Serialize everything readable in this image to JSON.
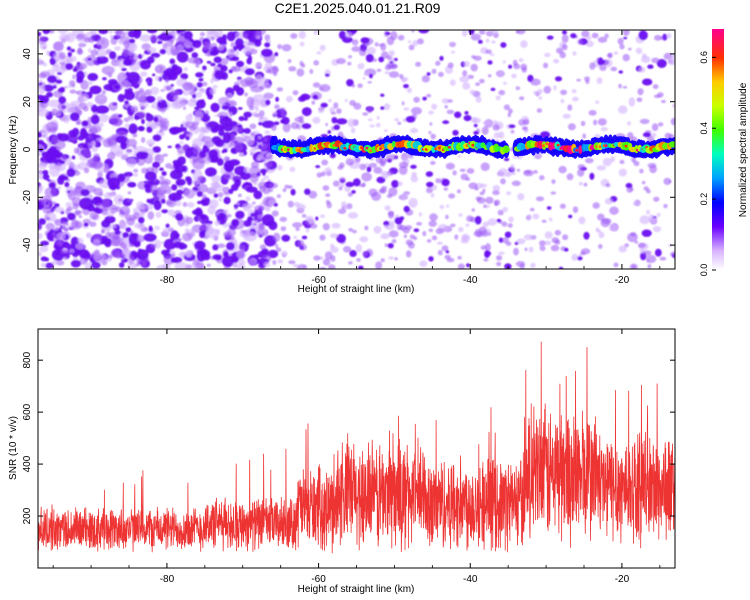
{
  "title": "C2E1.2025.040.01.21.R09",
  "chart_data": [
    {
      "type": "heatmap",
      "xlabel": "Height of straight line (km)",
      "ylabel": "Frequency (Hz)",
      "xlim": [
        -97,
        -13
      ],
      "ylim": [
        -50,
        50
      ],
      "xticks": [
        -80,
        -60,
        -40,
        -20
      ],
      "yticks": [
        -40,
        -20,
        0,
        20,
        40
      ],
      "colorbar": {
        "label": "Normalized spectral amplitude",
        "range": [
          0.0,
          0.68
        ],
        "ticks": [
          0.0,
          0.2,
          0.4,
          0.6
        ]
      },
      "features": {
        "noise_density": [
          {
            "from": -97,
            "to": -66,
            "level": 0.9
          },
          {
            "from": -66,
            "to": -35,
            "level": 0.35
          },
          {
            "from": -35,
            "to": -13,
            "level": 0.25
          }
        ],
        "signal_band": {
          "frequency": 1,
          "segments": [
            [
              -66,
              -35
            ],
            [
              -34,
              -13
            ]
          ],
          "amplitude": [
            [
              -66,
              0.35
            ],
            [
              -57,
              0.6
            ],
            [
              -45,
              0.45
            ],
            [
              -35,
              0.3
            ],
            [
              -30,
              0.65
            ],
            [
              -20,
              0.6
            ],
            [
              -13,
              0.55
            ]
          ]
        }
      }
    },
    {
      "type": "line",
      "xlabel": "Height of straight line (km)",
      "ylabel": "SNR (10 * v/v)",
      "xlim": [
        -97,
        -13
      ],
      "ylim": [
        0,
        920
      ],
      "xticks": [
        -80,
        -60,
        -40,
        -20
      ],
      "yticks": [
        200,
        400,
        600,
        800
      ],
      "series": [
        {
          "color": "#ee3333",
          "envelope": [
            {
              "from": -97,
              "to": -75,
              "base": 150,
              "spread": 80,
              "peak": 400
            },
            {
              "from": -75,
              "to": -63,
              "base": 170,
              "spread": 95,
              "peak": 460
            },
            {
              "from": -63,
              "to": -58,
              "base": 230,
              "spread": 150,
              "peak": 570
            },
            {
              "from": -58,
              "to": -46,
              "base": 280,
              "spread": 200,
              "peak": 650
            },
            {
              "from": -46,
              "to": -33,
              "base": 250,
              "spread": 170,
              "peak": 620
            },
            {
              "from": -33,
              "to": -23,
              "base": 360,
              "spread": 250,
              "peak": 915
            },
            {
              "from": -23,
              "to": -13,
              "base": 310,
              "spread": 200,
              "peak": 750
            }
          ]
        }
      ]
    }
  ]
}
